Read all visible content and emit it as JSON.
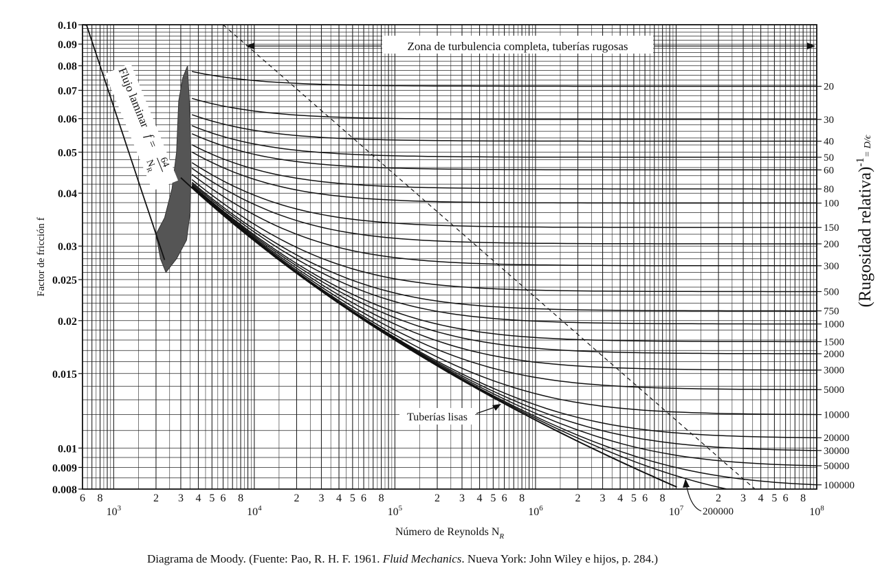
{
  "chart_data": {
    "type": "line",
    "title": "",
    "xlabel": "Número de Reynolds N",
    "xlabel_sub": "R",
    "ylabel": "Factor de fricción f",
    "y2label": "(Rugosidad relativa)",
    "y2label_sup": "-1",
    "y2label_tail": "= D/ϵ",
    "xscale": "log",
    "yscale": "log",
    "xlim": [
      600,
      100000000
    ],
    "ylim": [
      0.008,
      0.1
    ],
    "grid": true,
    "x_tick_labels": [
      {
        "value": 600,
        "label": "6"
      },
      {
        "value": 800,
        "label": "8"
      },
      {
        "value": 2000,
        "label": "2"
      },
      {
        "value": 3000,
        "label": "3"
      },
      {
        "value": 4000,
        "label": "4"
      },
      {
        "value": 5000,
        "label": "5"
      },
      {
        "value": 6000,
        "label": "6"
      },
      {
        "value": 8000,
        "label": "8"
      },
      {
        "value": 20000,
        "label": "2"
      },
      {
        "value": 30000,
        "label": "3"
      },
      {
        "value": 40000,
        "label": "4"
      },
      {
        "value": 50000,
        "label": "5"
      },
      {
        "value": 60000,
        "label": "6"
      },
      {
        "value": 80000,
        "label": "8"
      },
      {
        "value": 200000,
        "label": "2"
      },
      {
        "value": 300000,
        "label": "3"
      },
      {
        "value": 400000,
        "label": "4"
      },
      {
        "value": 500000,
        "label": "5"
      },
      {
        "value": 600000,
        "label": "6"
      },
      {
        "value": 800000,
        "label": "8"
      },
      {
        "value": 2000000,
        "label": "2"
      },
      {
        "value": 3000000,
        "label": "3"
      },
      {
        "value": 4000000,
        "label": "4"
      },
      {
        "value": 5000000,
        "label": "5"
      },
      {
        "value": 6000000,
        "label": "6"
      },
      {
        "value": 8000000,
        "label": "8"
      },
      {
        "value": 20000000,
        "label": "2"
      },
      {
        "value": 30000000,
        "label": "3"
      },
      {
        "value": 40000000,
        "label": "4"
      },
      {
        "value": 50000000,
        "label": "5"
      },
      {
        "value": 60000000,
        "label": "6"
      },
      {
        "value": 80000000,
        "label": "8"
      }
    ],
    "x_decade_labels": [
      {
        "value": 1000,
        "base": "10",
        "exp": "3"
      },
      {
        "value": 10000,
        "base": "10",
        "exp": "4"
      },
      {
        "value": 100000,
        "base": "10",
        "exp": "5"
      },
      {
        "value": 1000000,
        "base": "10",
        "exp": "6"
      },
      {
        "value": 10000000,
        "base": "10",
        "exp": "7"
      },
      {
        "value": 100000000,
        "base": "10",
        "exp": "8"
      }
    ],
    "y_ticks": [
      {
        "value": 0.1,
        "label": "0.10"
      },
      {
        "value": 0.09,
        "label": "0.09"
      },
      {
        "value": 0.08,
        "label": "0.08"
      },
      {
        "value": 0.07,
        "label": "0.07"
      },
      {
        "value": 0.06,
        "label": "0.06"
      },
      {
        "value": 0.05,
        "label": "0.05"
      },
      {
        "value": 0.04,
        "label": "0.04"
      },
      {
        "value": 0.03,
        "label": "0.03"
      },
      {
        "value": 0.025,
        "label": "0.025"
      },
      {
        "value": 0.02,
        "label": "0.02"
      },
      {
        "value": 0.015,
        "label": "0.015"
      },
      {
        "value": 0.01,
        "label": "0.01"
      },
      {
        "value": 0.009,
        "label": "0.009"
      },
      {
        "value": 0.008,
        "label": "0.008"
      }
    ],
    "y_grid_values": [
      0.008,
      0.0085,
      0.009,
      0.0095,
      0.01,
      0.011,
      0.012,
      0.013,
      0.014,
      0.015,
      0.016,
      0.017,
      0.018,
      0.019,
      0.02,
      0.021,
      0.022,
      0.023,
      0.024,
      0.025,
      0.026,
      0.027,
      0.028,
      0.029,
      0.03,
      0.032,
      0.034,
      0.036,
      0.038,
      0.04,
      0.042,
      0.044,
      0.046,
      0.048,
      0.05,
      0.052,
      0.054,
      0.056,
      0.058,
      0.06,
      0.062,
      0.064,
      0.066,
      0.068,
      0.07,
      0.072,
      0.074,
      0.076,
      0.078,
      0.08,
      0.082,
      0.084,
      0.086,
      0.088,
      0.09,
      0.092,
      0.094,
      0.096,
      0.098,
      0.1
    ],
    "relative_roughness_curves": [
      {
        "label": "20",
        "value": 20
      },
      {
        "label": "30",
        "value": 30
      },
      {
        "label": "40",
        "value": 40
      },
      {
        "label": "50",
        "value": 50
      },
      {
        "label": "60",
        "value": 60
      },
      {
        "label": "80",
        "value": 80
      },
      {
        "label": "100",
        "value": 100
      },
      {
        "label": "150",
        "value": 150
      },
      {
        "label": "200",
        "value": 200
      },
      {
        "label": "300",
        "value": 300
      },
      {
        "label": "500",
        "value": 500
      },
      {
        "label": "750",
        "value": 750
      },
      {
        "label": "1000",
        "value": 1000
      },
      {
        "label": "1500",
        "value": 1500
      },
      {
        "label": "2000",
        "value": 2000
      },
      {
        "label": "3000",
        "value": 3000
      },
      {
        "label": "5000",
        "value": 5000
      },
      {
        "label": "10000",
        "value": 10000
      },
      {
        "label": "20000",
        "value": 20000
      },
      {
        "label": "30000",
        "value": 30000
      },
      {
        "label": "50000",
        "value": 50000
      },
      {
        "label": "100000",
        "value": 100000
      },
      {
        "label": "200000",
        "value": 200000
      }
    ],
    "laminar": {
      "label_main": "Flujo laminar",
      "label_eq": "f =",
      "numerator": "64",
      "denominator": "N",
      "denominator_sub": "R",
      "x": [
        600,
        2300
      ]
    },
    "smooth": {
      "label": "Tuberías lisas",
      "x": [
        3000,
        100000000
      ]
    },
    "transition_zone": {
      "x": [
        2000,
        4000
      ],
      "y": [
        0.026,
        0.08
      ]
    },
    "complete_turbulence": {
      "label": "Zona de turbulencia completa, tuberías rugosas"
    }
  },
  "caption": {
    "prefix": "Diagrama de Moody. (Fuente: Pao, R. H. F. 1961. ",
    "book": "Fluid Mechanics",
    "suffix": ". Nueva York: John Wiley e hijos, p. 284.)"
  }
}
